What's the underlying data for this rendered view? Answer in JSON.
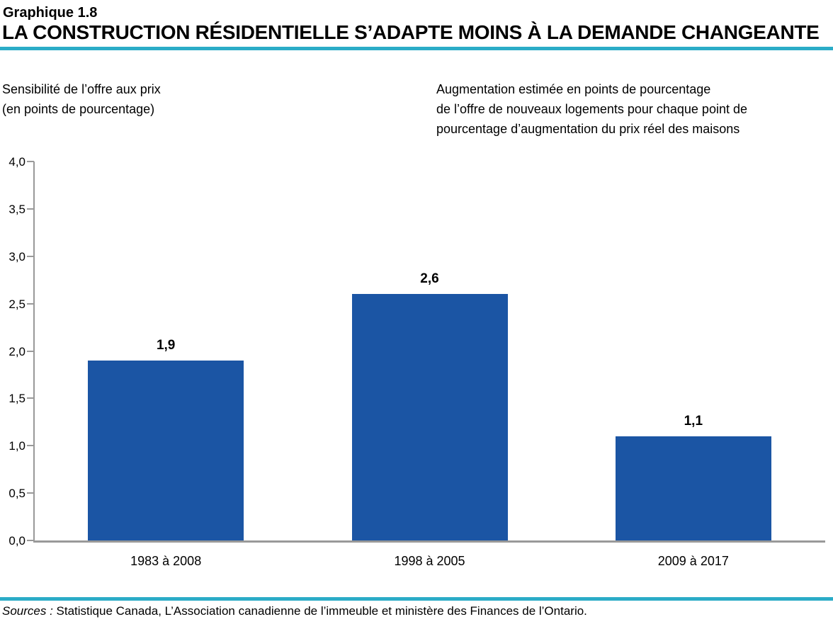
{
  "header": {
    "figure_label": "Graphique 1.8",
    "title": "LA CONSTRUCTION RÉSIDENTIELLE S’ADAPTE MOINS À LA DEMANDE CHANGEANTE"
  },
  "subtitles": {
    "left": [
      "Sensibilité de l’offre aux prix",
      "(en points de pourcentage)"
    ],
    "right": [
      "Augmentation estimée en points de pourcentage",
      "de l’offre de nouveaux logements pour chaque point de",
      "pourcentage d’augmentation du prix réel des maisons"
    ]
  },
  "chart_data": {
    "type": "bar",
    "categories": [
      "1983 à 2008",
      "1998 à 2005",
      "2009 à 2017"
    ],
    "values": [
      1.9,
      2.6,
      1.1
    ],
    "value_labels": [
      "1,9",
      "2,6",
      "1,1"
    ],
    "title": "",
    "xlabel": "",
    "ylabel": "Sensibilité de l’offre aux prix (en points de pourcentage)",
    "ylim": [
      0,
      4
    ],
    "ytick_step": 0.5,
    "ytick_labels": [
      "0,0",
      "0,5",
      "1,0",
      "1,5",
      "2,0",
      "2,5",
      "3,0",
      "3,5",
      "4,0"
    ],
    "grid": false,
    "legend": null
  },
  "footer": {
    "source_prefix": "Sources :",
    "source_text": " Statistique Canada, L’Association canadienne de l’immeuble et ministère des Finances de l’Ontario."
  },
  "colors": {
    "bar": "#1B55A4",
    "accent_rule": "#2BACC7",
    "axis": "#999999",
    "text": "#000000"
  }
}
